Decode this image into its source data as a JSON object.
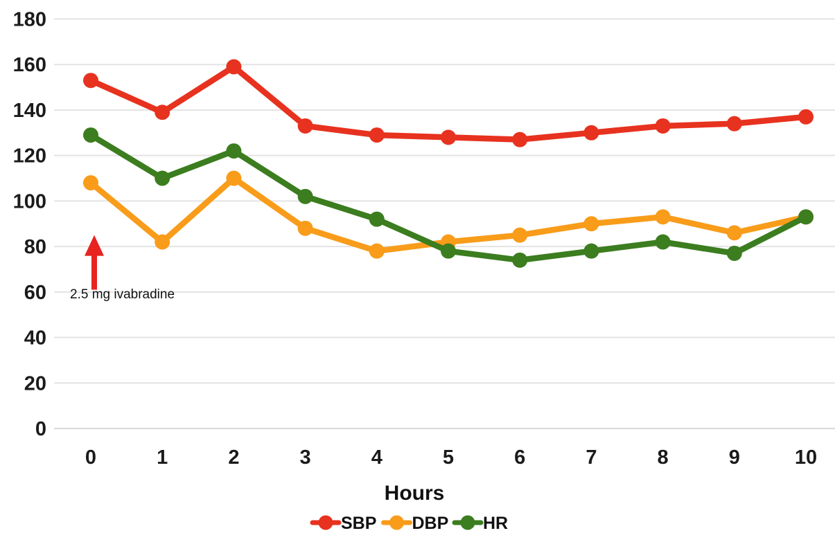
{
  "chart_data": {
    "type": "line",
    "x": [
      0,
      1,
      2,
      3,
      4,
      5,
      6,
      7,
      8,
      9,
      10
    ],
    "x_tick_labels": [
      "0",
      "1",
      "2",
      "3",
      "4",
      "5",
      "6",
      "7",
      "8",
      "9",
      "10"
    ],
    "xlabel": "Hours",
    "ylabel": "",
    "ylim": [
      0,
      180
    ],
    "yticks": [
      0,
      20,
      40,
      60,
      80,
      100,
      120,
      140,
      160,
      180
    ],
    "grid": "horizontal",
    "legend_position": "bottom",
    "series": [
      {
        "name": "SBP",
        "color": "#E7321F",
        "values": [
          153,
          139,
          159,
          133,
          129,
          128,
          127,
          130,
          133,
          134,
          137
        ]
      },
      {
        "name": "DBP",
        "color": "#F89C1A",
        "values": [
          108,
          82,
          110,
          88,
          78,
          82,
          85,
          90,
          93,
          86,
          93
        ]
      },
      {
        "name": "HR",
        "color": "#3B7D1F",
        "values": [
          129,
          110,
          122,
          102,
          92,
          78,
          74,
          78,
          82,
          77,
          93
        ]
      }
    ],
    "annotation": {
      "text": "2.5 mg ivabradine",
      "at_hour": 0,
      "arrow_color": "#E7241F",
      "arrow_base_value": 61,
      "arrow_tip_value": 85
    },
    "colors": {
      "gridline": "#E3E3E3",
      "zeroline": "#D8D8D8",
      "tick_text": "#1b1b1b",
      "background": "#ffffff"
    }
  }
}
